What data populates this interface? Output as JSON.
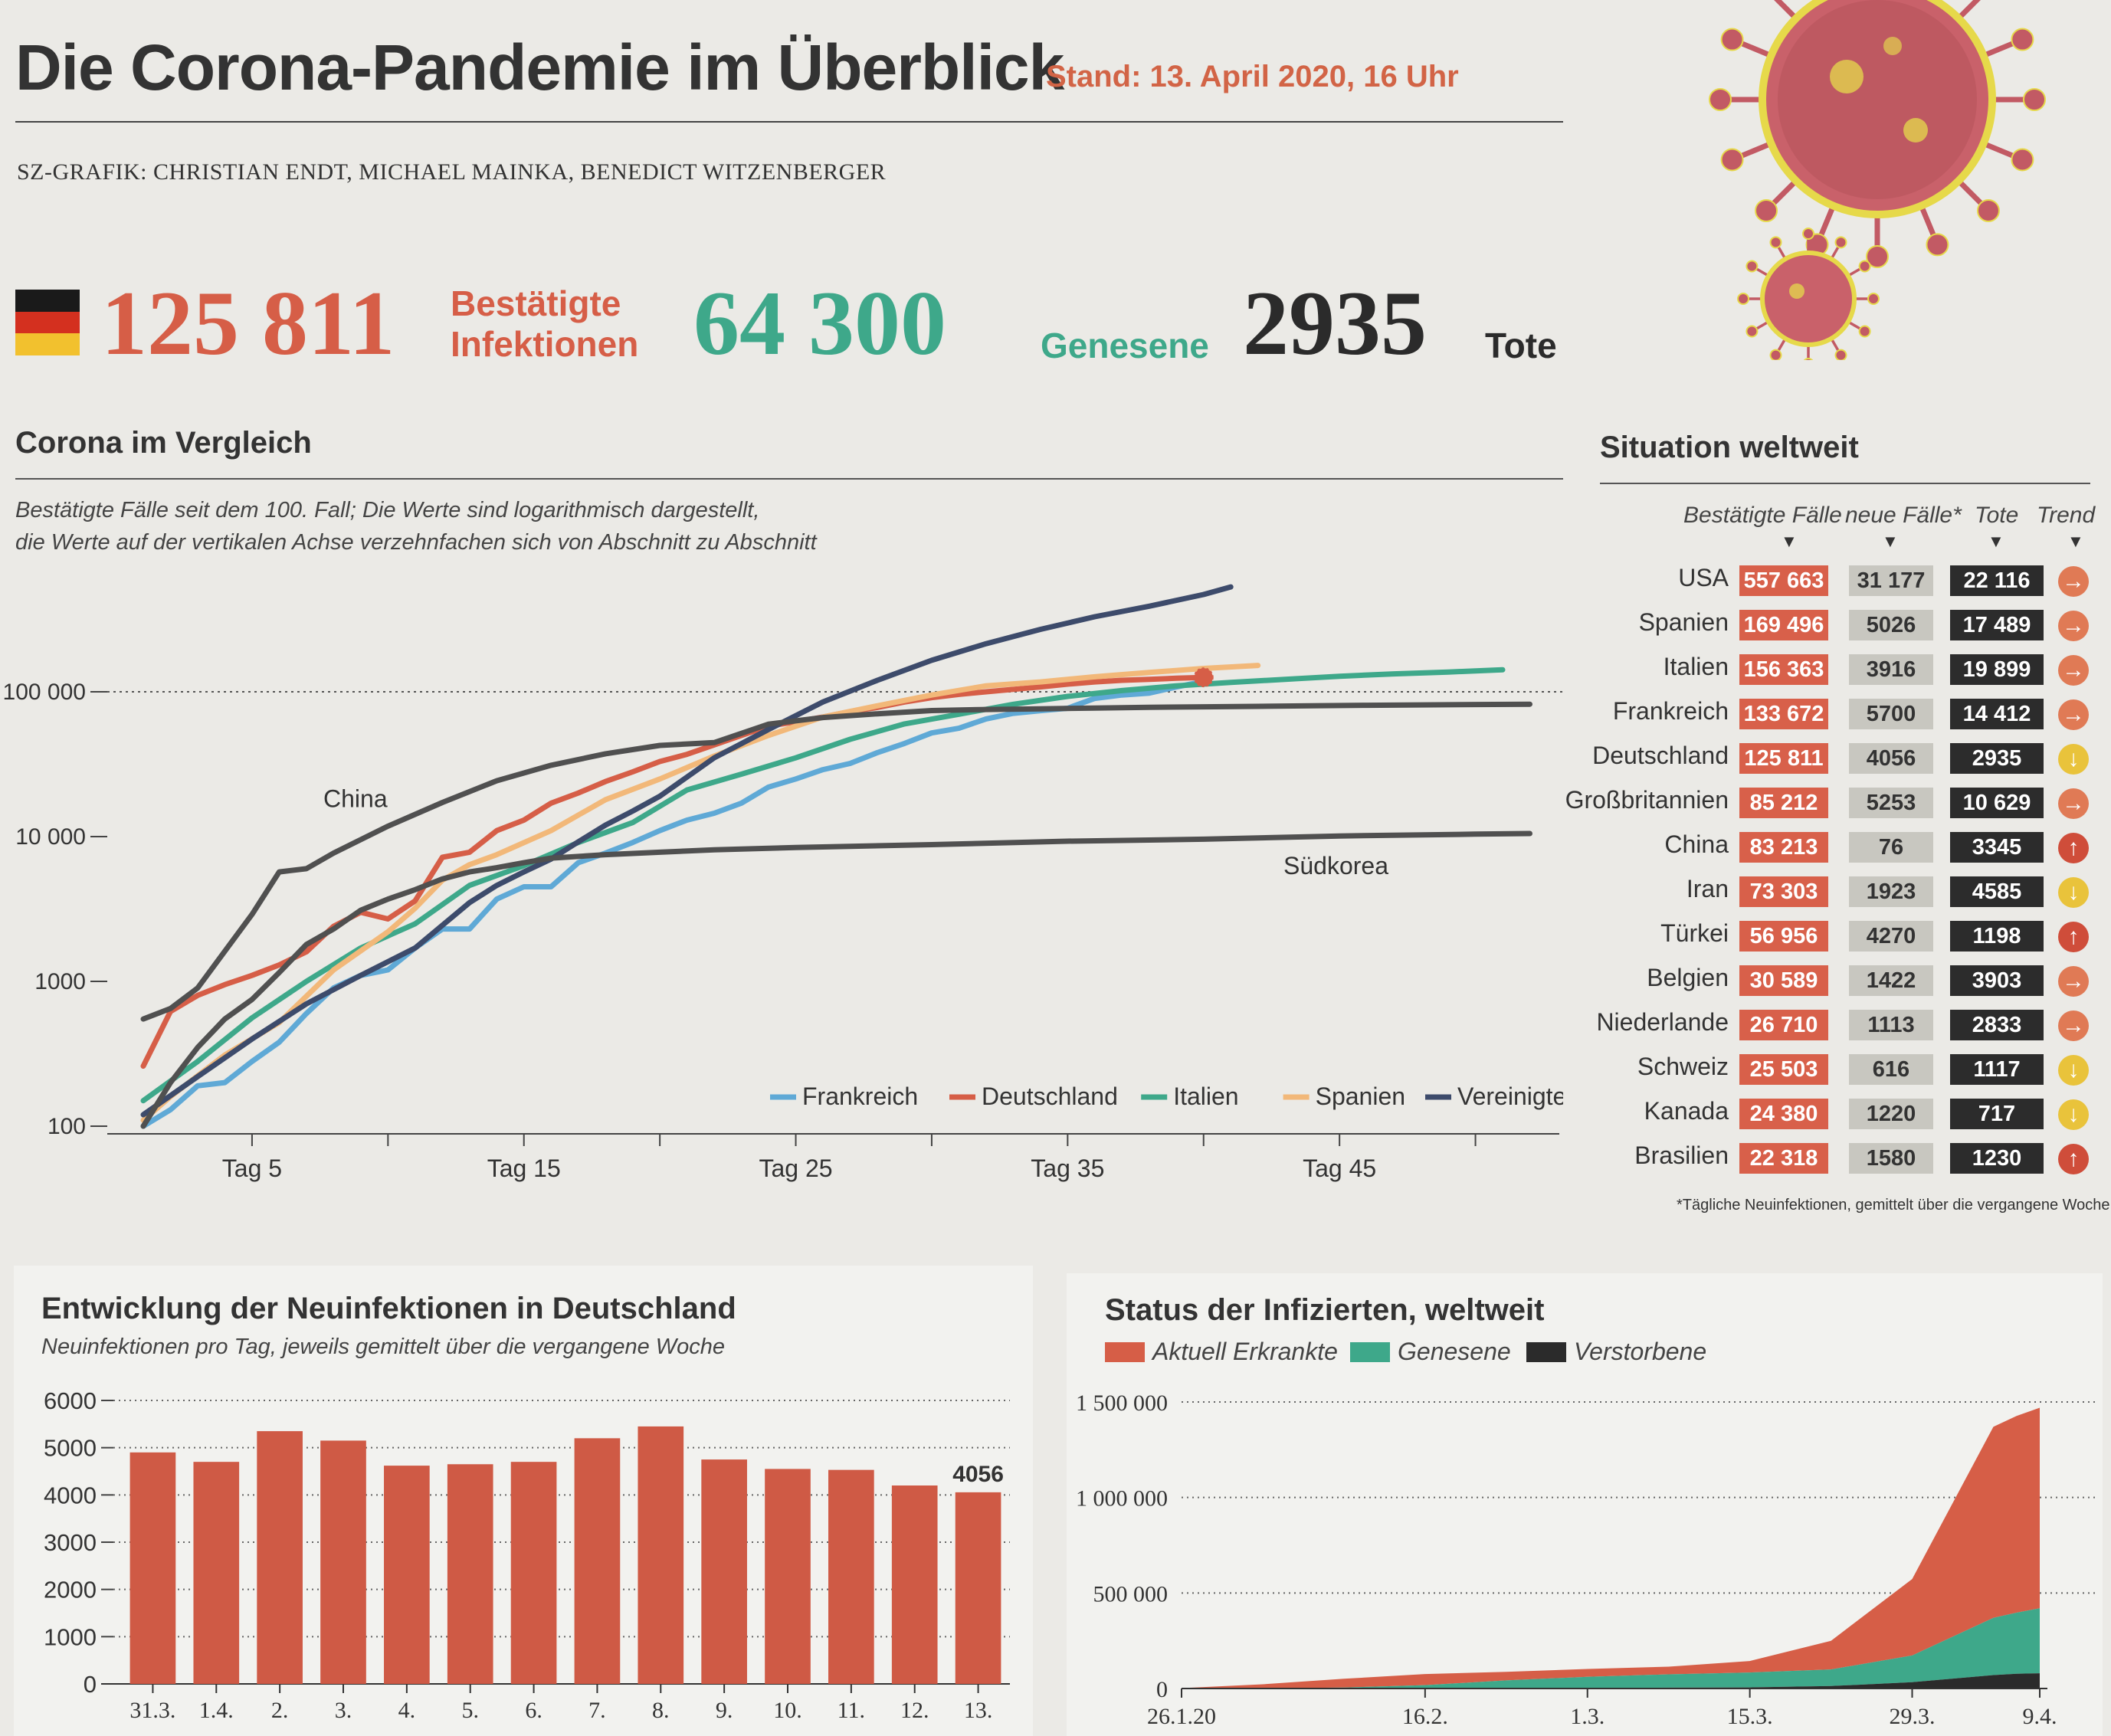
{
  "header": {
    "title": "Die Corona-Pandemie im Überblick",
    "stand": "Stand: 13. April 2020, 16 Uhr",
    "credits": "SZ-GRAFIK: CHRISTIAN ENDT, MICHAEL MAINKA, BENEDICT WITZENBERGER"
  },
  "germany": {
    "infections": "125 811",
    "infections_label_1": "Bestätigte",
    "infections_label_2": "Infektionen",
    "recovered": "64 300",
    "recovered_label": "Genesene",
    "deaths": "2935",
    "deaths_label": "Tote",
    "flag_colors": [
      "#1a1a1a",
      "#d4301f",
      "#f2c12e"
    ]
  },
  "colors": {
    "red": "#d65e47",
    "green": "#3ea88a",
    "dark": "#2b2b2b",
    "trend_right": "#e07a55",
    "trend_down": "#e9c33b",
    "trend_up": "#cf4d3a"
  },
  "chart_data": [
    {
      "type": "line",
      "title": "Corona im Vergleich",
      "subtitle_1": "Bestätigte Fälle seit dem 100. Fall; Die Werte sind logarithmisch dargestellt,",
      "subtitle_2": "die Werte auf der vertikalen Achse verzehnfachen sich von Abschnitt zu Abschnitt",
      "yscale": "log",
      "ylim": [
        100,
        1000000
      ],
      "yticks": [
        100,
        1000,
        10000,
        100000
      ],
      "ytick_labels": [
        "100",
        "1000",
        "10 000",
        "100 000"
      ],
      "xlim": [
        1,
        53
      ],
      "xticks": [
        5,
        15,
        25,
        35,
        45
      ],
      "xtick_labels": [
        "Tag 5",
        "Tag 15",
        "Tag 25",
        "Tag 35",
        "Tag 45"
      ],
      "legend_position": "bottom-right",
      "annotations": [
        "China",
        "Südkorea"
      ],
      "series": [
        {
          "name": "Frankreich",
          "color": "#5fa9d6",
          "x": [
            1,
            2,
            3,
            4,
            5,
            6,
            7,
            8,
            9,
            10,
            11,
            12,
            13,
            14,
            15,
            16,
            17,
            18,
            19,
            20,
            21,
            22,
            23,
            24,
            25,
            26,
            27,
            28,
            29,
            30,
            31,
            32,
            33,
            34,
            35,
            36,
            37,
            38,
            39,
            40
          ],
          "y": [
            100,
            130,
            190,
            200,
            280,
            380,
            600,
            900,
            1100,
            1200,
            1700,
            2300,
            2300,
            3700,
            4500,
            4500,
            6600,
            7700,
            9100,
            11000,
            13000,
            14500,
            17000,
            22000,
            25000,
            29000,
            32000,
            38000,
            44000,
            52000,
            56000,
            65000,
            71000,
            74000,
            77000,
            90000,
            95000,
            98000,
            108000,
            118000
          ]
        },
        {
          "name": "Deutschland",
          "color": "#d65e47",
          "x": [
            1,
            2,
            3,
            4,
            5,
            6,
            7,
            8,
            9,
            10,
            11,
            12,
            13,
            14,
            15,
            16,
            17,
            18,
            19,
            20,
            21,
            22,
            23,
            24,
            25,
            26,
            27,
            28,
            29,
            30,
            31,
            32,
            33,
            34,
            35,
            36,
            37,
            38,
            39,
            40
          ],
          "y": [
            260,
            620,
            800,
            950,
            1100,
            1300,
            1600,
            2400,
            3000,
            2700,
            3600,
            7200,
            7800,
            11000,
            13000,
            17000,
            20000,
            24000,
            28000,
            33000,
            37000,
            43000,
            50000,
            58000,
            62000,
            67000,
            73000,
            78000,
            85000,
            91000,
            96000,
            100000,
            104000,
            108000,
            113000,
            117000,
            120000,
            122000,
            124000,
            125811
          ]
        },
        {
          "name": "Italien",
          "color": "#3ea88a",
          "x": [
            1,
            3,
            5,
            7,
            9,
            11,
            13,
            15,
            17,
            19,
            21,
            23,
            25,
            27,
            29,
            31,
            33,
            35,
            37,
            39,
            41,
            43,
            45,
            47,
            49,
            51
          ],
          "y": [
            150,
            280,
            560,
            1000,
            1700,
            2500,
            4600,
            6300,
            9100,
            12500,
            21000,
            27000,
            35000,
            47000,
            60000,
            70000,
            82000,
            93000,
            102000,
            110000,
            116000,
            122000,
            128000,
            133000,
            137000,
            142000
          ]
        },
        {
          "name": "Spanien",
          "color": "#f2b879",
          "x": [
            1,
            2,
            4,
            6,
            8,
            10,
            11,
            12,
            13,
            14,
            16,
            18,
            20,
            22,
            24,
            26,
            28,
            30,
            32,
            34,
            36,
            38,
            40,
            42
          ],
          "y": [
            110,
            160,
            310,
            520,
            1200,
            2200,
            3200,
            5000,
            6400,
            7500,
            11000,
            18000,
            25000,
            36000,
            50000,
            67000,
            80000,
            95000,
            110000,
            117000,
            127000,
            136000,
            145000,
            152000
          ]
        },
        {
          "name": "Vereinigte Staaten",
          "color": "#3d4b6b",
          "x": [
            1,
            3,
            5,
            7,
            9,
            11,
            13,
            14,
            15,
            16,
            17,
            18,
            19,
            20,
            22,
            24,
            26,
            28,
            30,
            32,
            34,
            36,
            38,
            40,
            41
          ],
          "y": [
            120,
            220,
            400,
            700,
            1100,
            1700,
            3500,
            4600,
            5700,
            7000,
            9200,
            12000,
            15000,
            19000,
            35000,
            55000,
            85000,
            120000,
            165000,
            215000,
            270000,
            330000,
            390000,
            470000,
            530000
          ]
        },
        {
          "name": "China",
          "color": "#505050",
          "x": [
            1,
            2,
            3,
            5,
            6,
            7,
            8,
            10,
            12,
            14,
            16,
            18,
            20,
            22,
            24,
            26,
            28,
            30,
            32,
            34,
            36,
            38,
            40,
            42,
            44,
            46,
            48,
            50,
            52
          ],
          "y": [
            550,
            650,
            900,
            2900,
            5700,
            6000,
            7700,
            11800,
            17200,
            24300,
            31100,
            37300,
            42600,
            44600,
            59800,
            66400,
            70500,
            74200,
            75500,
            76300,
            77200,
            78100,
            78800,
            79300,
            80000,
            80700,
            81200,
            81700,
            82100
          ]
        },
        {
          "name": "Südkorea",
          "color": "#505050",
          "x": [
            1,
            2,
            3,
            4,
            5,
            6,
            7,
            8,
            9,
            10,
            11,
            12,
            13,
            14,
            15,
            16,
            18,
            20,
            22,
            25,
            30,
            35,
            40,
            45,
            50,
            52
          ],
          "y": [
            100,
            200,
            350,
            550,
            750,
            1150,
            1800,
            2300,
            3100,
            3700,
            4300,
            5100,
            5700,
            6100,
            6600,
            7100,
            7500,
            7800,
            8100,
            8400,
            8800,
            9300,
            9600,
            10100,
            10400,
            10500
          ]
        }
      ]
    },
    {
      "type": "bar",
      "title": "Entwicklung der Neuinfektionen in Deutschland",
      "subtitle": "Neuinfektionen pro Tag, jeweils gemittelt über die vergangene Woche",
      "categories": [
        "31.3.",
        "1.4.",
        "2.",
        "3.",
        "4.",
        "5.",
        "6.",
        "7.",
        "8.",
        "9.",
        "10.",
        "11.",
        "12.",
        "13."
      ],
      "values": [
        4900,
        4700,
        5350,
        5150,
        4620,
        4650,
        4700,
        5200,
        5450,
        4750,
        4550,
        4530,
        4200,
        4056
      ],
      "value_label": "4056",
      "ylim": [
        0,
        6000
      ],
      "yticks": [
        0,
        1000,
        2000,
        3000,
        4000,
        5000,
        6000
      ],
      "color": "#cf5a45"
    },
    {
      "type": "area",
      "title": "Status der Infizierten, weltweit",
      "legend": [
        "Aktuell Erkrankte",
        "Genesene",
        "Verstorbene"
      ],
      "colors": [
        "#d65e47",
        "#3ea88a",
        "#2b2b2b"
      ],
      "x": [
        0,
        7,
        14,
        21,
        28,
        35,
        42,
        49,
        56,
        63,
        70,
        72,
        74
      ],
      "x_labels": [
        "26.1.20",
        "16.2.",
        "1.3.",
        "15.3.",
        "29.3.",
        "9.4."
      ],
      "x_label_positions": [
        0,
        21,
        35,
        49,
        63,
        74
      ],
      "ylim": [
        0,
        1500000
      ],
      "yticks": [
        0,
        500000,
        1000000,
        1500000
      ],
      "ytick_labels": [
        "0",
        "500 000",
        "1 000 000",
        "1 500 000"
      ],
      "series": [
        {
          "name": "Verstorbene",
          "values": [
            56,
            300,
            1100,
            1800,
            2500,
            3400,
            4300,
            5800,
            13000,
            33000,
            70000,
            77000,
            80000
          ]
        },
        {
          "name": "Genesene",
          "values": [
            50,
            600,
            4000,
            16000,
            40000,
            58000,
            70000,
            78000,
            87000,
            140000,
            300000,
            320000,
            340000
          ]
        },
        {
          "name": "Aktuell Erkrankte",
          "values": [
            2000,
            21000,
            46000,
            58000,
            45000,
            41000,
            40000,
            60000,
            150000,
            400000,
            1000000,
            1030000,
            1050000
          ]
        }
      ]
    }
  ],
  "comparison_legend": [
    "Frankreich",
    "Deutschland",
    "Italien",
    "Spanien",
    "Vereinigte Staaten"
  ],
  "annotations": {
    "china": "China",
    "suedkorea": "Südkorea"
  },
  "world": {
    "title": "Situation weltweit",
    "col_cases": "Bestätigte Fälle",
    "col_new": "neue Fälle*",
    "col_deaths": "Tote",
    "col_trend": "Trend",
    "footnote": "*Tägliche Neuinfektionen, gemittelt über die vergangene Woche",
    "rows": [
      {
        "country": "USA",
        "cases": "557 663",
        "new": "31 177",
        "deaths": "22 116",
        "trend": "right"
      },
      {
        "country": "Spanien",
        "cases": "169 496",
        "new": "5026",
        "deaths": "17 489",
        "trend": "right"
      },
      {
        "country": "Italien",
        "cases": "156 363",
        "new": "3916",
        "deaths": "19 899",
        "trend": "right"
      },
      {
        "country": "Frankreich",
        "cases": "133 672",
        "new": "5700",
        "deaths": "14 412",
        "trend": "right"
      },
      {
        "country": "Deutschland",
        "cases": "125 811",
        "new": "4056",
        "deaths": "2935",
        "trend": "down"
      },
      {
        "country": "Großbritannien",
        "cases": "85 212",
        "new": "5253",
        "deaths": "10 629",
        "trend": "right"
      },
      {
        "country": "China",
        "cases": "83 213",
        "new": "76",
        "deaths": "3345",
        "trend": "up"
      },
      {
        "country": "Iran",
        "cases": "73 303",
        "new": "1923",
        "deaths": "4585",
        "trend": "down"
      },
      {
        "country": "Türkei",
        "cases": "56 956",
        "new": "4270",
        "deaths": "1198",
        "trend": "up"
      },
      {
        "country": "Belgien",
        "cases": "30 589",
        "new": "1422",
        "deaths": "3903",
        "trend": "right"
      },
      {
        "country": "Niederlande",
        "cases": "26 710",
        "new": "1113",
        "deaths": "2833",
        "trend": "right"
      },
      {
        "country": "Schweiz",
        "cases": "25 503",
        "new": "616",
        "deaths": "1117",
        "trend": "down"
      },
      {
        "country": "Kanada",
        "cases": "24 380",
        "new": "1220",
        "deaths": "717",
        "trend": "down"
      },
      {
        "country": "Brasilien",
        "cases": "22 318",
        "new": "1580",
        "deaths": "1230",
        "trend": "up"
      }
    ]
  }
}
